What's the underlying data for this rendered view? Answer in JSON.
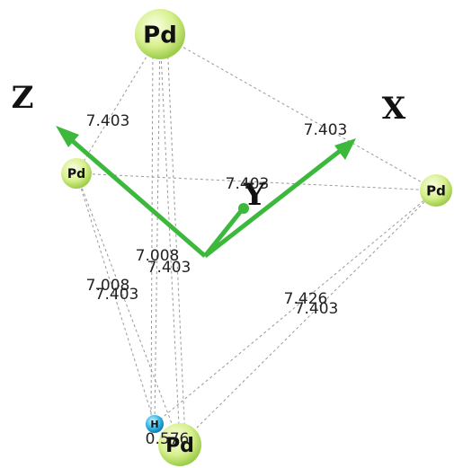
{
  "axes": [
    "Z",
    "X",
    "Y"
  ],
  "atoms": [
    {
      "label": "Pd"
    },
    {
      "label": "Pd"
    },
    {
      "label": "Pd"
    },
    {
      "label": "Pd"
    },
    {
      "label": "H"
    }
  ],
  "distances": [
    "7.403",
    "7.403",
    "7.403",
    "7.008",
    "7.403",
    "7.008",
    "7.403",
    "7.426",
    "7.403",
    "0.576"
  ]
}
